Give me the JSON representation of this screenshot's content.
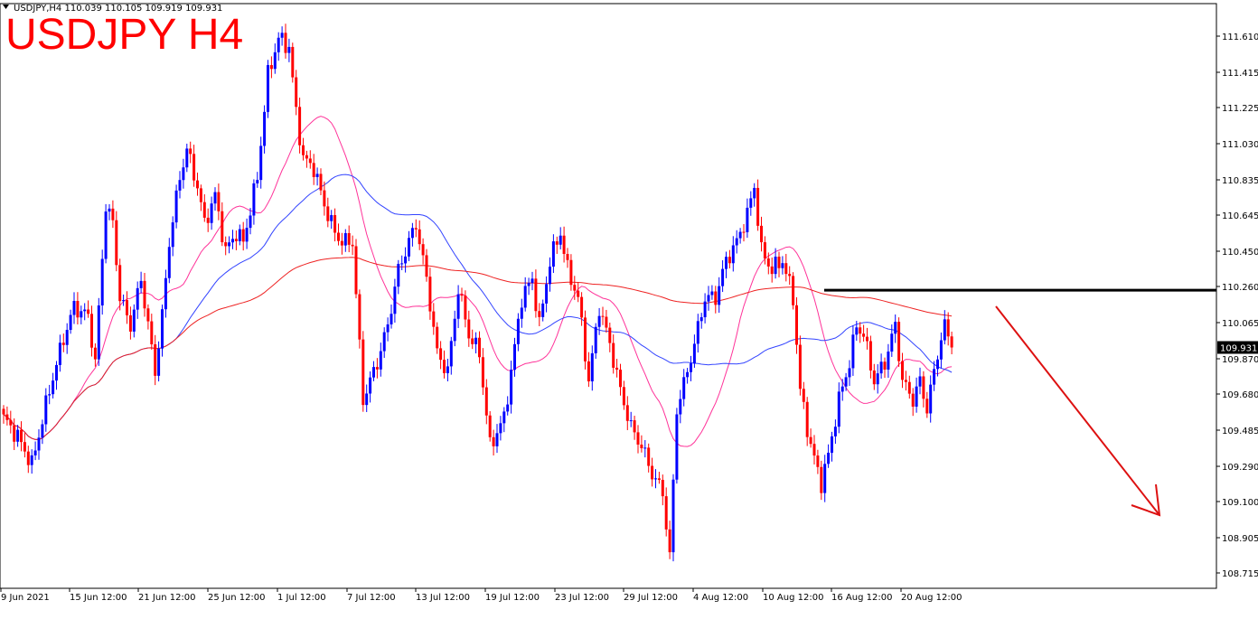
{
  "header": {
    "symbol_line": "USDJPY,H4  110.039 110.105 109.919 109.931",
    "big_title": "USDJPY H4"
  },
  "price_badge": "109.931",
  "colors": {
    "bull": "#0000ff",
    "bear": "#ff0000",
    "ma_fast": "#ff3399",
    "ma_mid": "#3344ff",
    "ma_slow": "#ee2222",
    "resistance": "#000000",
    "arrow": "#dd1111",
    "title": "#ff0000"
  },
  "chart_data": {
    "type": "candlestick",
    "y_ticks": [
      "111.610",
      "111.415",
      "111.225",
      "111.030",
      "110.835",
      "110.645",
      "110.450",
      "110.260",
      "110.065",
      "109.870",
      "109.680",
      "109.485",
      "109.290",
      "109.100",
      "108.905",
      "108.715"
    ],
    "x_ticks": [
      "9 Jun 2021",
      "15 Jun 12:00",
      "21 Jun 12:00",
      "25 Jun 12:00",
      "1 Jul 12:00",
      "7 Jul 12:00",
      "13 Jul 12:00",
      "19 Jul 12:00",
      "23 Jul 12:00",
      "29 Jul 12:00",
      "4 Aug 12:00",
      "10 Aug 12:00",
      "16 Aug 12:00",
      "20 Aug 12:00"
    ],
    "ylim": [
      108.65,
      111.72
    ],
    "last_price": 109.931,
    "resistance_level": 110.24,
    "anchors": [
      [
        0,
        109.55
      ],
      [
        4,
        109.45
      ],
      [
        8,
        109.3
      ],
      [
        13,
        109.7
      ],
      [
        17,
        109.98
      ],
      [
        20,
        110.15
      ],
      [
        24,
        110.1
      ],
      [
        26,
        109.85
      ],
      [
        29,
        110.7
      ],
      [
        31,
        110.6
      ],
      [
        33,
        110.2
      ],
      [
        36,
        110.05
      ],
      [
        39,
        110.3
      ],
      [
        43,
        109.8
      ],
      [
        45,
        110.1
      ],
      [
        47,
        110.5
      ],
      [
        50,
        110.85
      ],
      [
        52,
        111.0
      ],
      [
        55,
        110.8
      ],
      [
        57,
        110.6
      ],
      [
        60,
        110.75
      ],
      [
        63,
        110.45
      ],
      [
        66,
        110.55
      ],
      [
        68,
        110.5
      ],
      [
        72,
        110.85
      ],
      [
        75,
        111.4
      ],
      [
        78,
        111.6
      ],
      [
        81,
        111.55
      ],
      [
        83,
        111.2
      ],
      [
        85,
        110.95
      ],
      [
        88,
        110.9
      ],
      [
        91,
        110.7
      ],
      [
        94,
        110.55
      ],
      [
        96,
        110.5
      ],
      [
        99,
        110.5
      ],
      [
        102,
        109.65
      ],
      [
        106,
        109.85
      ],
      [
        109,
        110.05
      ],
      [
        112,
        110.35
      ],
      [
        114,
        110.45
      ],
      [
        117,
        110.6
      ],
      [
        120,
        110.3
      ],
      [
        123,
        109.9
      ],
      [
        126,
        109.8
      ],
      [
        129,
        110.25
      ],
      [
        132,
        110.0
      ],
      [
        135,
        109.9
      ],
      [
        138,
        109.4
      ],
      [
        142,
        109.55
      ],
      [
        144,
        109.8
      ],
      [
        147,
        110.2
      ],
      [
        150,
        110.3
      ],
      [
        152,
        110.05
      ],
      [
        155,
        110.4
      ],
      [
        158,
        110.55
      ],
      [
        160,
        110.35
      ],
      [
        163,
        110.2
      ],
      [
        166,
        109.75
      ],
      [
        169,
        110.15
      ],
      [
        172,
        109.95
      ],
      [
        175,
        109.7
      ],
      [
        178,
        109.5
      ],
      [
        181,
        109.4
      ],
      [
        184,
        109.25
      ],
      [
        187,
        109.15
      ],
      [
        189,
        108.8
      ],
      [
        191,
        109.6
      ],
      [
        194,
        109.8
      ],
      [
        196,
        109.95
      ],
      [
        199,
        110.2
      ],
      [
        202,
        110.2
      ],
      [
        205,
        110.4
      ],
      [
        208,
        110.5
      ],
      [
        211,
        110.65
      ],
      [
        213,
        110.8
      ],
      [
        215,
        110.45
      ],
      [
        218,
        110.35
      ],
      [
        221,
        110.4
      ],
      [
        224,
        110.2
      ],
      [
        226,
        109.7
      ],
      [
        229,
        109.4
      ],
      [
        232,
        109.2
      ],
      [
        234,
        109.35
      ],
      [
        237,
        109.65
      ],
      [
        240,
        109.85
      ],
      [
        242,
        110.05
      ],
      [
        244,
        110.0
      ],
      [
        247,
        109.75
      ],
      [
        250,
        109.85
      ],
      [
        253,
        110.05
      ],
      [
        255,
        109.75
      ],
      [
        258,
        109.65
      ],
      [
        260,
        109.75
      ],
      [
        262,
        109.6
      ],
      [
        265,
        109.9
      ],
      [
        267,
        110.05
      ],
      [
        269,
        109.93
      ]
    ],
    "moving_averages": [
      {
        "period": 20,
        "color_key": "ma_fast"
      },
      {
        "period": 50,
        "color_key": "ma_mid"
      },
      {
        "period": 200,
        "color_key": "ma_slow"
      }
    ]
  }
}
